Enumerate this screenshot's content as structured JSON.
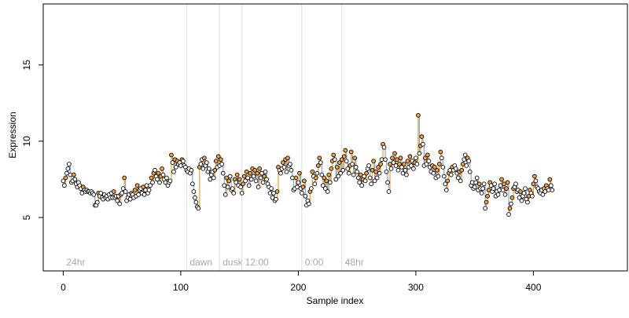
{
  "chart_data": {
    "type": "scatter",
    "title": "",
    "xlabel": "Sample index",
    "ylabel": "Expression",
    "xlim": [
      -17,
      480
    ],
    "ylim": [
      1.5,
      19
    ],
    "x_ticks": [
      0,
      100,
      200,
      300,
      400
    ],
    "y_ticks": [
      5,
      10,
      15
    ],
    "grid": false,
    "legend": "none",
    "colors": {
      "point_fill": "#ffffff",
      "point_stroke": "#000000",
      "point_fill_alt": "#f2a33a",
      "stem_up": "#f0a020",
      "stem_down": "#7ea6e0",
      "annotation_line": "#dddddd",
      "annotation_text": "#a8a8a8"
    },
    "annotations": [
      {
        "x": 0,
        "label": "24hr"
      },
      {
        "x": 105,
        "label": "dawn"
      },
      {
        "x": 133,
        "label": "dusk"
      },
      {
        "x": 152,
        "label": "12:00"
      },
      {
        "x": 203,
        "label": "0:00"
      },
      {
        "x": 237,
        "label": "48hr"
      }
    ],
    "series": [
      {
        "x_start": 0,
        "x_step": 1,
        "values": [
          7.4,
          7.1,
          7.6,
          7.9,
          8.2,
          8.5,
          7.8,
          7.3,
          7.4,
          7.8,
          7.5,
          7.2,
          7.0,
          7.3,
          7.1,
          6.9,
          6.6,
          7.0,
          6.8,
          6.7,
          6.8,
          6.7,
          6.7,
          6.6,
          6.7,
          6.6,
          6.5,
          5.8,
          5.8,
          6.0,
          6.6,
          6.4,
          6.6,
          6.3,
          6.2,
          6.5,
          6.3,
          6.4,
          6.2,
          6.5,
          6.3,
          6.6,
          6.3,
          6.7,
          6.3,
          6.4,
          6.1,
          6.4,
          5.9,
          6.5,
          6.6,
          6.9,
          7.6,
          6.7,
          6.1,
          6.3,
          6.5,
          6.2,
          6.6,
          6.5,
          6.3,
          6.8,
          6.4,
          7.1,
          6.5,
          6.8,
          6.9,
          6.6,
          7.0,
          6.5,
          6.8,
          7.1,
          6.6,
          6.8,
          7.1,
          7.6,
          7.3,
          7.9,
          8.1,
          7.7,
          7.5,
          7.9,
          7.3,
          7.7,
          8.2,
          7.8,
          7.5,
          7.3,
          7.6,
          7.1,
          7.3,
          7.4,
          9.1,
          8.6,
          8.0,
          8.8,
          8.3,
          8.7,
          8.5,
          8.6,
          8.4,
          8.8,
          8.7,
          8.4,
          8.3,
          8.1,
          8.0,
          8.2,
          7.9,
          8.1,
          7.2,
          6.7,
          6.3,
          6.0,
          5.7,
          5.6,
          8.3,
          8.5,
          8.8,
          8.2,
          8.9,
          8.4,
          8.6,
          8.0,
          8.2,
          7.5,
          7.8,
          8.0,
          7.6,
          8.1,
          8.7,
          8.3,
          9.0,
          8.4,
          8.8,
          8.5,
          7.9,
          7.1,
          6.5,
          7.6,
          7.0,
          7.4,
          7.7,
          6.8,
          6.9,
          6.6,
          7.5,
          7.3,
          7.8,
          7.1,
          7.5,
          7.0,
          6.6,
          7.2,
          7.7,
          7.4,
          8.0,
          7.6,
          7.1,
          7.9,
          7.5,
          8.2,
          7.7,
          8.1,
          7.4,
          7.9,
          7.0,
          8.2,
          7.6,
          7.9,
          7.3,
          7.7,
          8.0,
          7.5,
          7.2,
          7.0,
          6.6,
          6.9,
          6.3,
          6.6,
          6.1,
          6.2,
          6.7,
          8.3,
          8.1,
          7.9,
          8.2,
          8.6,
          8.3,
          8.8,
          8.0,
          8.9,
          8.4,
          8.5,
          8.1,
          7.6,
          6.8,
          6.9,
          7.6,
          7.0,
          7.3,
          7.9,
          6.9,
          6.6,
          7.0,
          7.4,
          6.4,
          5.8,
          6.1,
          5.9,
          6.7,
          6.9,
          8.0,
          7.7,
          7.2,
          7.6,
          7.9,
          8.4,
          8.9,
          8.6,
          7.8,
          7.1,
          7.6,
          6.9,
          7.4,
          6.7,
          7.8,
          7.3,
          8.2,
          8.7,
          9.1,
          8.8,
          7.5,
          8.3,
          7.7,
          8.6,
          7.9,
          8.8,
          8.1,
          9.0,
          9.4,
          8.7,
          8.2,
          7.9,
          8.4,
          9.3,
          8.5,
          7.8,
          8.9,
          8.3,
          8.0,
          7.6,
          7.3,
          7.8,
          7.1,
          7.5,
          7.7,
          7.4,
          7.9,
          8.2,
          8.4,
          7.6,
          7.2,
          8.1,
          8.7,
          7.4,
          8.0,
          7.6,
          8.3,
          7.9,
          8.5,
          8.8,
          9.8,
          9.6,
          8.8,
          8.0,
          7.3,
          6.7,
          8.5,
          8.2,
          8.9,
          8.6,
          9.2,
          8.4,
          8.8,
          8.1,
          8.5,
          8.9,
          8.3,
          7.9,
          8.5,
          8.1,
          7.8,
          8.7,
          8.3,
          9.0,
          8.4,
          8.7,
          8.2,
          8.6,
          8.9,
          8.5,
          11.7,
          9.2,
          9.7,
          10.3,
          9.8,
          8.4,
          8.9,
          8.5,
          9.1,
          8.7,
          8.3,
          8.0,
          8.4,
          7.9,
          8.3,
          7.6,
          8.1,
          7.7,
          8.5,
          9.3,
          8.9,
          8.3,
          7.7,
          7.2,
          6.8,
          7.4,
          7.9,
          8.1,
          7.8,
          8.3,
          8.1,
          8.4,
          8.2,
          7.9,
          7.6,
          8.0,
          7.4,
          8.1,
          8.5,
          8.8,
          9.1,
          8.4,
          8.9,
          8.7,
          8.0,
          7.1,
          7.3,
          6.9,
          7.0,
          7.3,
          7.6,
          6.8,
          7.2,
          6.9,
          6.6,
          6.9,
          7.2,
          5.6,
          6.0,
          6.4,
          6.8,
          7.3,
          7.1,
          6.7,
          6.9,
          7.2,
          6.4,
          6.7,
          6.5,
          6.8,
          7.1,
          7.5,
          6.8,
          7.2,
          6.5,
          6.9,
          7.3,
          5.2,
          5.6,
          5.9,
          6.3,
          6.9,
          7.0,
          7.2,
          6.7,
          6.8,
          6.3,
          6.7,
          6.1,
          6.4,
          6.6,
          6.9,
          6.2,
          6.0,
          6.4,
          6.8,
          6.6,
          6.4,
          7.2,
          7.7,
          7.4,
          7.0,
          6.9,
          6.7,
          6.6,
          6.8,
          6.5,
          6.9,
          6.7,
          7.1,
          6.9,
          6.8,
          7.5,
          7.1,
          6.8
        ]
      }
    ]
  }
}
